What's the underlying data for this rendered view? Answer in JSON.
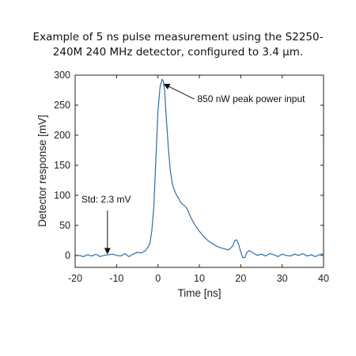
{
  "chart_data": {
    "type": "line",
    "title_lines": [
      "Example of 5 ns pulse measurement using the S2250-",
      "240M 240 MHz detector, configured to 3.4 µm."
    ],
    "xlabel": "Time [ns]",
    "ylabel": "Detector response [mV]",
    "xlim": [
      -20,
      40
    ],
    "ylim": [
      -20,
      300
    ],
    "xticks": [
      -20,
      -10,
      0,
      10,
      20,
      30,
      40
    ],
    "yticks": [
      0,
      50,
      100,
      150,
      200,
      250,
      300
    ],
    "grid": false,
    "line_color": "#2f6fa8",
    "series": [
      {
        "x": [
          -20,
          -19,
          -18,
          -17,
          -16,
          -15,
          -14,
          -13,
          -12,
          -11,
          -10,
          -9,
          -8,
          -7,
          -6,
          -5,
          -4,
          -3,
          -2,
          -1.5,
          -1,
          -0.5,
          0,
          0.5,
          1,
          1.3,
          1.6,
          2,
          2.5,
          3,
          3.5,
          4,
          4.5,
          5,
          5.5,
          6,
          6.5,
          7,
          8,
          9,
          10,
          11,
          12,
          13,
          14,
          15,
          16,
          17,
          18,
          18.5,
          19,
          19.5,
          20,
          20.5,
          21,
          21.5,
          22,
          23,
          24,
          25,
          26,
          27,
          28,
          29,
          30,
          31,
          32,
          33,
          34,
          35,
          36,
          37,
          38,
          39,
          40
        ],
        "y": [
          -1,
          0,
          -2,
          1,
          -1,
          2,
          -2,
          0,
          1,
          2,
          0,
          -1,
          3,
          -2,
          2,
          5,
          4,
          8,
          18,
          40,
          80,
          160,
          240,
          280,
          293,
          290,
          275,
          230,
          180,
          140,
          118,
          108,
          100,
          95,
          88,
          85,
          82,
          78,
          62,
          50,
          40,
          32,
          25,
          20,
          16,
          13,
          11,
          9,
          15,
          24,
          26,
          18,
          6,
          -4,
          -3,
          5,
          8,
          4,
          0,
          2,
          -1,
          3,
          1,
          -2,
          2,
          0,
          -1,
          2,
          0,
          3,
          -1,
          1,
          -2,
          1,
          3
        ]
      }
    ],
    "annotations": [
      {
        "text": "850 nW peak power input",
        "x": 9.5,
        "y": 255,
        "arrow_to": [
          1.5,
          285
        ]
      },
      {
        "text": "Std: 2.3 mV",
        "x": -18.5,
        "y": 88,
        "arrow_to": [
          -12.2,
          3
        ]
      }
    ]
  }
}
